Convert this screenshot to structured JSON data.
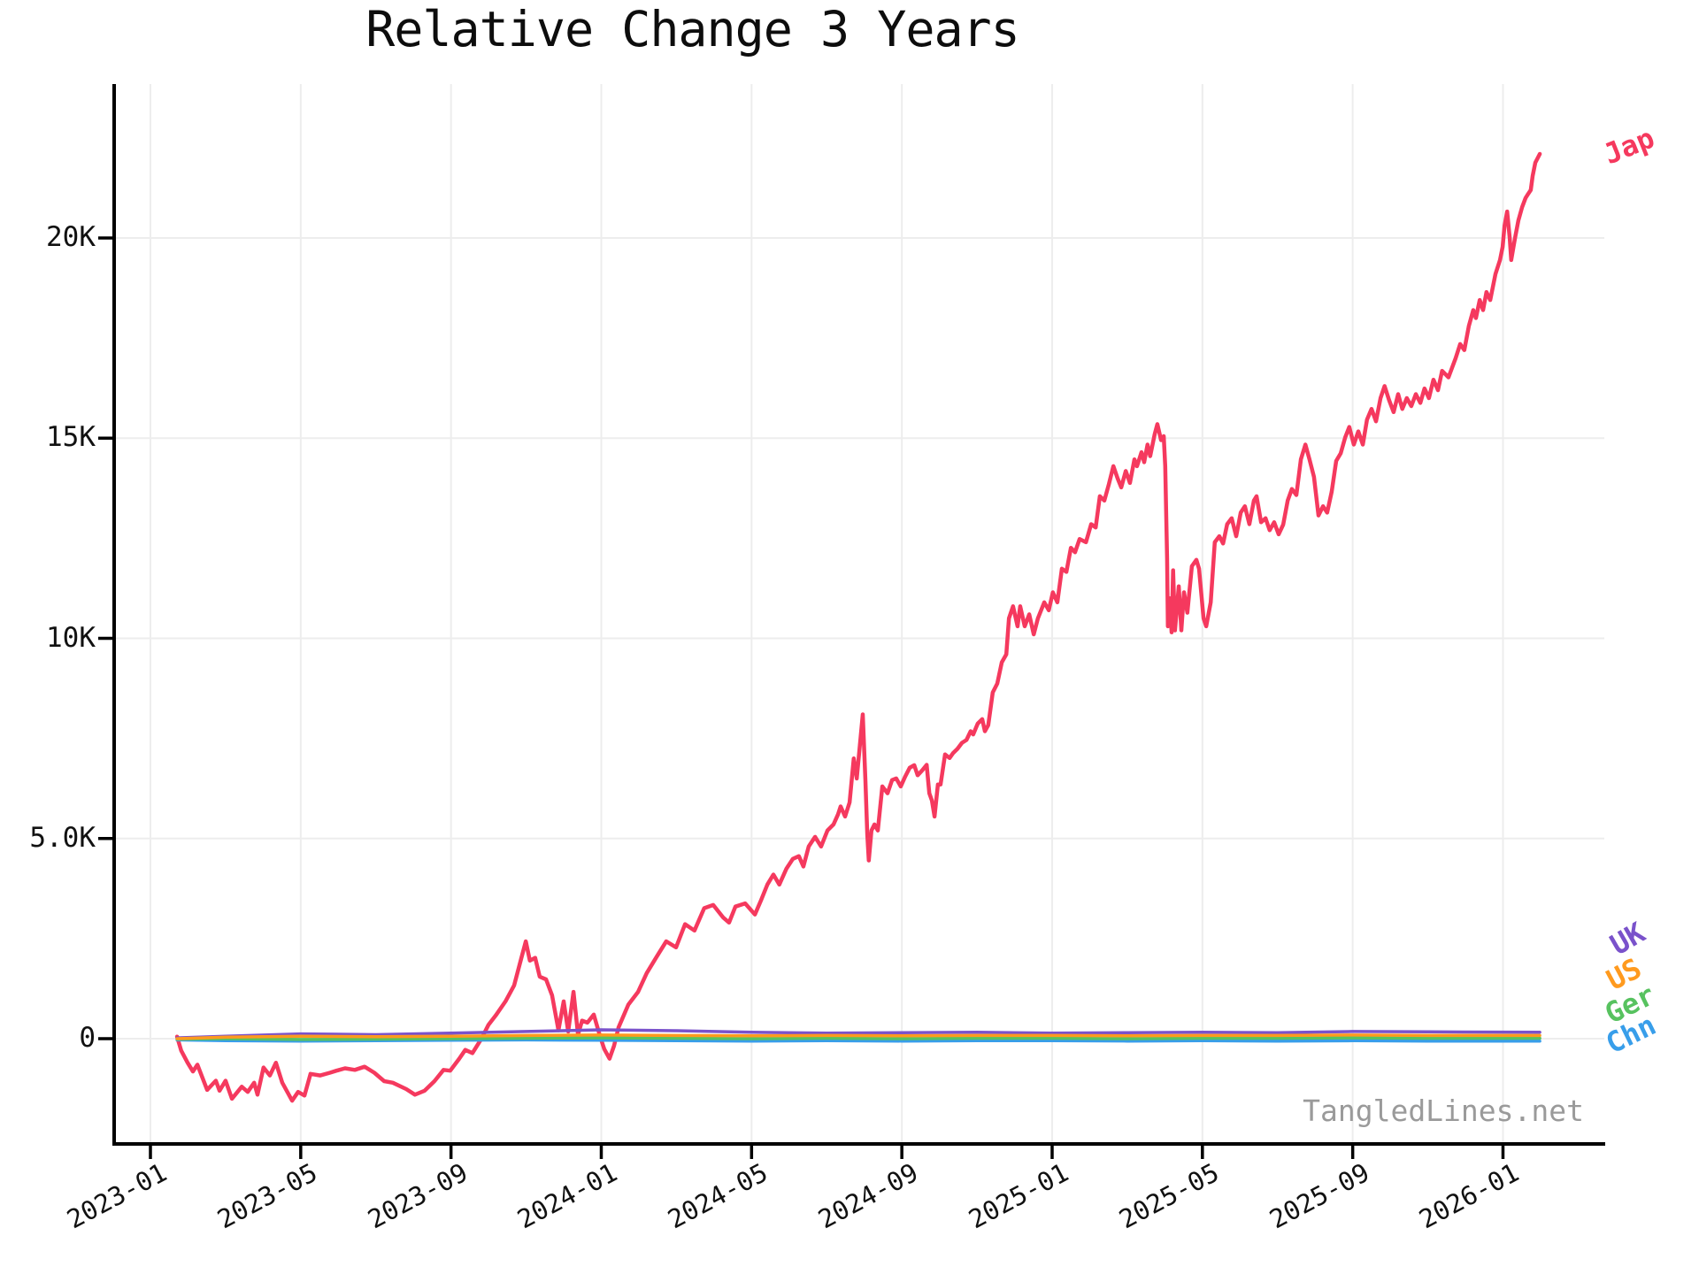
{
  "title": "Relative Change 3 Years",
  "watermark": "TangledLines.net",
  "chart_data": {
    "type": "line",
    "title": "Relative Change 3 Years",
    "grid": true,
    "legend_position": "line-end-labels-right",
    "x_axis": {
      "unit": "months since 2023-01",
      "tick_labels": [
        "2023-01",
        "2023-05",
        "2023-09",
        "2024-01",
        "2024-05",
        "2024-09",
        "2025-01",
        "2025-05",
        "2025-09",
        "2026-01"
      ],
      "tick_months": [
        0,
        4,
        8,
        12,
        16,
        20,
        24,
        28,
        32,
        36
      ],
      "xlim_months": [
        -0.94,
        38.7
      ]
    },
    "y_axis": {
      "unit": "thousands",
      "tick_labels": [
        "0",
        "5.0K",
        "10K",
        "15K",
        "20K"
      ],
      "tick_values": [
        0,
        5,
        10,
        15,
        20
      ],
      "ylim": [
        -2.61,
        23.85
      ]
    },
    "series": [
      {
        "name": "Jap",
        "color": "#F5395E",
        "width": 4.5,
        "m": [
          0.71,
          0.82,
          0.99,
          1.13,
          1.25,
          1.51,
          1.74,
          1.84,
          2.0,
          2.17,
          2.43,
          2.59,
          2.76,
          2.85,
          3.01,
          3.18,
          3.34,
          3.51,
          3.77,
          3.93,
          4.1,
          4.26,
          4.52,
          4.78,
          4.95,
          5.18,
          5.44,
          5.7,
          5.96,
          6.22,
          6.45,
          6.81,
          7.04,
          7.3,
          7.56,
          7.8,
          7.98,
          8.22,
          8.38,
          8.57,
          8.81,
          9.0,
          9.19,
          9.45,
          9.68,
          9.84,
          9.99,
          10.1,
          10.24,
          10.36,
          10.53,
          10.69,
          10.86,
          11.0,
          11.12,
          11.26,
          11.38,
          11.49,
          11.63,
          11.8,
          11.97,
          12.08,
          12.22,
          12.34,
          12.46,
          12.72,
          12.98,
          13.21,
          13.47,
          13.73,
          13.99,
          14.23,
          14.48,
          14.74,
          14.98,
          15.24,
          15.4,
          15.57,
          15.83,
          16.09,
          16.25,
          16.42,
          16.58,
          16.74,
          16.93,
          17.1,
          17.26,
          17.38,
          17.52,
          17.69,
          17.85,
          18.02,
          18.18,
          18.3,
          18.37,
          18.49,
          18.61,
          18.72,
          18.8,
          18.96,
          19.03,
          19.08,
          19.12,
          19.19,
          19.27,
          19.36,
          19.48,
          19.62,
          19.74,
          19.85,
          19.97,
          20.09,
          20.21,
          20.33,
          20.42,
          20.54,
          20.66,
          20.73,
          20.8,
          20.87,
          20.96,
          21.03,
          21.15,
          21.27,
          21.36,
          21.48,
          21.6,
          21.72,
          21.83,
          21.9,
          22.02,
          22.14,
          22.21,
          22.3,
          22.42,
          22.54,
          22.66,
          22.78,
          22.85,
          22.96,
          23.08,
          23.15,
          23.27,
          23.39,
          23.51,
          23.62,
          23.79,
          23.91,
          24.02,
          24.14,
          24.26,
          24.38,
          24.5,
          24.61,
          24.73,
          24.9,
          25.04,
          25.16,
          25.27,
          25.39,
          25.51,
          25.63,
          25.74,
          25.84,
          25.96,
          26.07,
          26.19,
          26.26,
          26.38,
          26.45,
          26.54,
          26.61,
          26.73,
          26.8,
          26.9,
          26.97,
          27.01,
          27.06,
          27.08,
          27.13,
          27.18,
          27.22,
          27.27,
          27.37,
          27.44,
          27.51,
          27.6,
          27.72,
          27.84,
          27.91,
          28.03,
          28.1,
          28.22,
          28.33,
          28.45,
          28.55,
          28.66,
          28.78,
          28.9,
          29.02,
          29.13,
          29.25,
          29.37,
          29.44,
          29.56,
          29.68,
          29.79,
          29.91,
          30.03,
          30.15,
          30.27,
          30.38,
          30.5,
          30.62,
          30.74,
          30.85,
          30.97,
          31.09,
          31.21,
          31.32,
          31.44,
          31.56,
          31.68,
          31.8,
          31.91,
          32.03,
          32.15,
          32.27,
          32.38,
          32.5,
          32.62,
          32.74,
          32.85,
          32.97,
          33.09,
          33.21,
          33.32,
          33.44,
          33.56,
          33.68,
          33.8,
          33.91,
          34.03,
          34.15,
          34.27,
          34.38,
          34.55,
          34.74,
          34.86,
          34.97,
          35.09,
          35.21,
          35.28,
          35.38,
          35.47,
          35.56,
          35.66,
          35.8,
          35.92,
          35.99,
          36.04,
          36.11,
          36.18,
          36.22,
          36.32,
          36.41,
          36.51,
          36.6,
          36.67,
          36.74,
          36.79,
          36.86,
          36.98
        ],
        "v": [
          0.05,
          -0.3,
          -0.6,
          -0.82,
          -0.65,
          -1.28,
          -1.05,
          -1.3,
          -1.05,
          -1.5,
          -1.2,
          -1.33,
          -1.1,
          -1.4,
          -0.72,
          -0.92,
          -0.6,
          -1.1,
          -1.55,
          -1.33,
          -1.42,
          -0.88,
          -0.92,
          -0.85,
          -0.8,
          -0.74,
          -0.78,
          -0.7,
          -0.85,
          -1.06,
          -1.1,
          -1.26,
          -1.4,
          -1.3,
          -1.06,
          -0.78,
          -0.8,
          -0.5,
          -0.28,
          -0.36,
          0.0,
          0.35,
          0.58,
          0.93,
          1.33,
          1.9,
          2.43,
          1.95,
          2.02,
          1.55,
          1.48,
          1.08,
          0.21,
          0.93,
          0.18,
          1.17,
          0.1,
          0.45,
          0.4,
          0.6,
          0.05,
          -0.26,
          -0.5,
          -0.18,
          0.28,
          0.85,
          1.17,
          1.64,
          2.04,
          2.43,
          2.28,
          2.86,
          2.7,
          3.26,
          3.34,
          3.03,
          2.9,
          3.3,
          3.38,
          3.1,
          3.45,
          3.85,
          4.1,
          3.85,
          4.25,
          4.49,
          4.56,
          4.3,
          4.8,
          5.04,
          4.8,
          5.2,
          5.35,
          5.6,
          5.8,
          5.55,
          5.9,
          7.0,
          6.5,
          8.1,
          6.44,
          5.1,
          4.45,
          5.2,
          5.35,
          5.2,
          6.3,
          6.13,
          6.46,
          6.5,
          6.3,
          6.55,
          6.77,
          6.83,
          6.58,
          6.7,
          6.84,
          6.13,
          5.95,
          5.55,
          6.35,
          6.35,
          7.1,
          7.01,
          7.13,
          7.24,
          7.39,
          7.46,
          7.68,
          7.6,
          7.87,
          7.98,
          7.68,
          7.83,
          8.65,
          8.87,
          9.4,
          9.6,
          10.5,
          10.8,
          10.3,
          10.8,
          10.3,
          10.6,
          10.1,
          10.5,
          10.9,
          10.7,
          11.15,
          10.9,
          11.74,
          11.66,
          12.26,
          12.15,
          12.48,
          12.4,
          12.85,
          12.77,
          13.55,
          13.44,
          13.85,
          14.3,
          14.0,
          13.77,
          14.18,
          13.88,
          14.47,
          14.3,
          14.65,
          14.4,
          14.84,
          14.55,
          15.1,
          15.35,
          14.95,
          15.05,
          14.3,
          12.0,
          10.3,
          11.0,
          10.15,
          11.7,
          10.2,
          11.3,
          10.2,
          11.15,
          10.64,
          11.8,
          11.96,
          11.74,
          10.5,
          10.3,
          10.9,
          12.4,
          12.55,
          12.37,
          12.85,
          13.0,
          12.55,
          13.14,
          13.3,
          12.85,
          13.44,
          13.55,
          12.9,
          13.0,
          12.7,
          12.9,
          12.6,
          12.84,
          13.44,
          13.73,
          13.58,
          14.47,
          14.84,
          14.47,
          14.03,
          13.07,
          13.3,
          13.14,
          13.66,
          14.43,
          14.62,
          15.02,
          15.28,
          14.84,
          15.17,
          14.84,
          15.46,
          15.73,
          15.42,
          16.0,
          16.3,
          15.95,
          15.65,
          16.1,
          15.73,
          16.0,
          15.8,
          16.1,
          15.88,
          16.24,
          16.0,
          16.46,
          16.2,
          16.68,
          16.52,
          17.0,
          17.35,
          17.2,
          17.8,
          18.2,
          18.0,
          18.45,
          18.2,
          18.65,
          18.45,
          19.1,
          19.45,
          19.78,
          20.3,
          20.66,
          20.0,
          19.45,
          20.0,
          20.44,
          20.77,
          21.0,
          21.1,
          21.2,
          21.55,
          21.88,
          22.1
        ]
      },
      {
        "name": "UK",
        "color": "#7A52CB",
        "width": 3.5,
        "m": [
          0.71,
          2,
          4,
          6,
          8,
          10,
          12,
          14,
          16,
          18,
          20,
          22,
          24,
          26,
          28,
          30,
          32,
          34,
          36.98
        ],
        "v": [
          0.02,
          0.06,
          0.12,
          0.1,
          0.14,
          0.18,
          0.22,
          0.2,
          0.16,
          0.14,
          0.15,
          0.16,
          0.14,
          0.15,
          0.16,
          0.15,
          0.18,
          0.17,
          0.16
        ]
      },
      {
        "name": "US",
        "color": "#FF9A1E",
        "width": 3.5,
        "m": [
          0.71,
          2,
          4,
          6,
          8,
          10,
          12,
          14,
          16,
          18,
          20,
          22,
          24,
          26,
          28,
          30,
          32,
          34,
          36.98
        ],
        "v": [
          0.0,
          0.04,
          0.06,
          0.05,
          0.06,
          0.08,
          0.09,
          0.08,
          0.07,
          0.08,
          0.07,
          0.08,
          0.08,
          0.07,
          0.08,
          0.08,
          0.09,
          0.08,
          0.08
        ]
      },
      {
        "name": "Ger",
        "color": "#57C25F",
        "width": 3.5,
        "m": [
          0.71,
          2,
          4,
          6,
          8,
          10,
          12,
          14,
          16,
          18,
          20,
          22,
          24,
          26,
          28,
          30,
          32,
          34,
          36.98
        ],
        "v": [
          -0.01,
          0.0,
          -0.02,
          -0.01,
          0.0,
          0.01,
          0.02,
          0.01,
          0.0,
          0.01,
          0.0,
          0.01,
          0.01,
          0.0,
          0.01,
          0.01,
          0.02,
          0.01,
          0.01
        ]
      },
      {
        "name": "Chn",
        "color": "#389EEA",
        "width": 3.5,
        "m": [
          0.71,
          2,
          4,
          6,
          8,
          10,
          12,
          14,
          16,
          18,
          20,
          22,
          24,
          26,
          28,
          30,
          32,
          34,
          36.98
        ],
        "v": [
          -0.03,
          -0.05,
          -0.06,
          -0.05,
          -0.04,
          -0.03,
          -0.04,
          -0.05,
          -0.06,
          -0.05,
          -0.06,
          -0.05,
          -0.05,
          -0.06,
          -0.05,
          -0.06,
          -0.05,
          -0.06,
          -0.06
        ]
      }
    ],
    "colors": {
      "grid": "#ededed",
      "axis": "#000000",
      "tick_text": "#111111",
      "watermark": "#9a9a9a"
    }
  }
}
